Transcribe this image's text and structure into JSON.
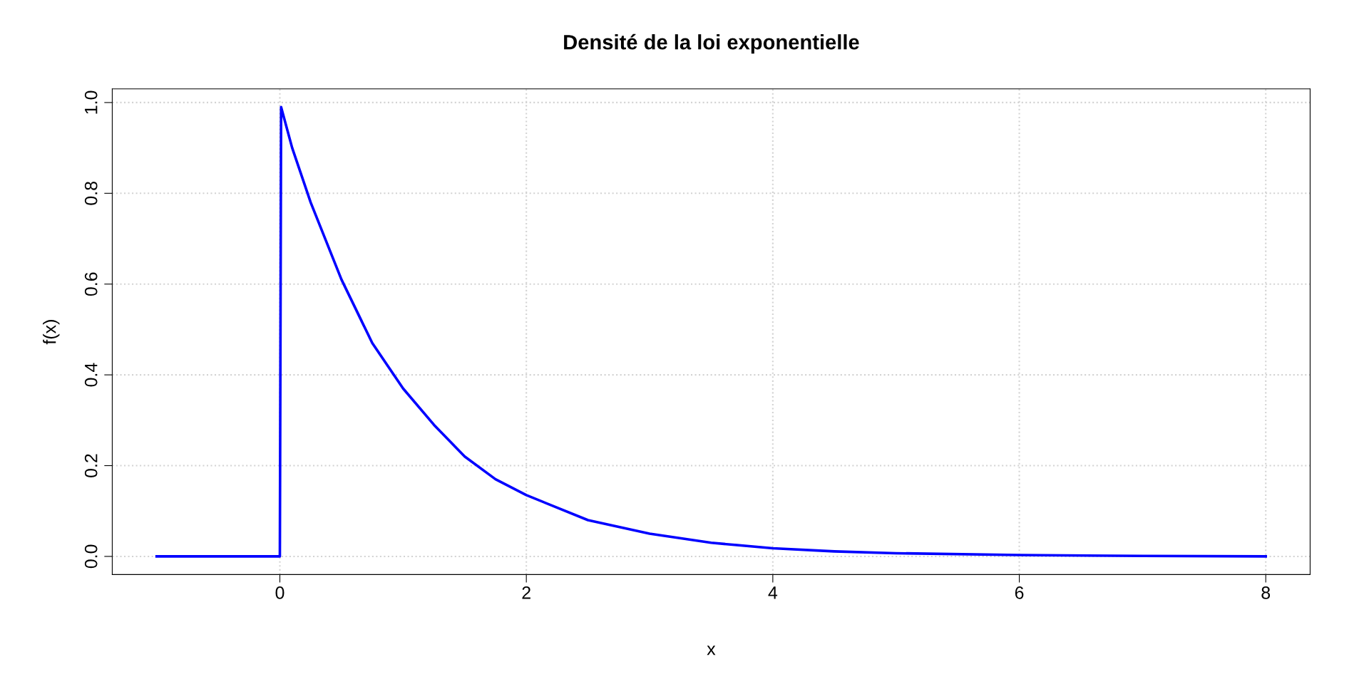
{
  "chart_data": {
    "type": "line",
    "title": "Densité de la loi exponentielle",
    "xlabel": "x",
    "ylabel": "f(x)",
    "series": [
      {
        "color": "#0000ff",
        "x": [
          -1,
          -0.5,
          0,
          0.01,
          0.1,
          0.25,
          0.5,
          0.75,
          1,
          1.25,
          1.5,
          1.75,
          2,
          2.5,
          3,
          3.5,
          4,
          4.5,
          5,
          6,
          7,
          8
        ],
        "values": [
          0,
          0,
          0,
          0.99,
          0.9,
          0.78,
          0.61,
          0.47,
          0.37,
          0.29,
          0.22,
          0.17,
          0.135,
          0.08,
          0.05,
          0.03,
          0.018,
          0.011,
          0.007,
          0.003,
          0.001,
          0
        ]
      }
    ],
    "xlim": [
      -1.36,
      8.36
    ],
    "ylim": [
      -0.04,
      1.03
    ],
    "xticks": [
      0,
      2,
      4,
      6,
      8
    ],
    "yticks": [
      {
        "value": 0,
        "label": "0.0"
      },
      {
        "value": 0.2,
        "label": "0.2"
      },
      {
        "value": 0.4,
        "label": "0.4"
      },
      {
        "value": 0.6,
        "label": "0.6"
      },
      {
        "value": 0.8,
        "label": "0.8"
      },
      {
        "value": 1,
        "label": "1.0"
      }
    ],
    "grid": true,
    "line_style": "solid"
  }
}
